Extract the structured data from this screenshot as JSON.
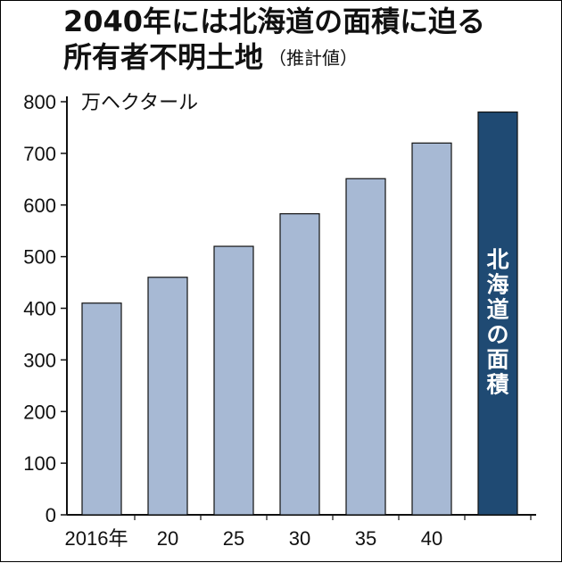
{
  "title": {
    "line1": "2040年には北海道の面積に迫る",
    "line2": "所有者不明土地",
    "note": "（推計値）"
  },
  "chart_data": {
    "type": "bar",
    "title": "2040年には北海道の面積に迫る 所有者不明土地",
    "ylabel": "万ヘクタール",
    "ylim": [
      0,
      800
    ],
    "yticks": [
      0,
      100,
      200,
      300,
      400,
      500,
      600,
      700,
      800
    ],
    "categories": [
      "2016年",
      "20",
      "25",
      "30",
      "35",
      "40",
      ""
    ],
    "values": [
      410,
      460,
      520,
      583,
      651,
      720,
      780
    ],
    "reference_bar": {
      "label": "北海道の面積",
      "value": 780,
      "color": "#1f4a73"
    },
    "bar_color": "#a7b9d4",
    "grid": false,
    "legend": "none"
  }
}
